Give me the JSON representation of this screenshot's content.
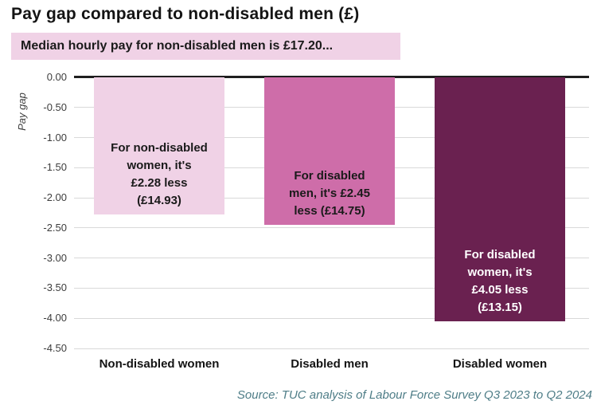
{
  "chart_data": {
    "type": "bar",
    "title": "Pay gap compared to non-disabled men (£)",
    "subtitle": "Median hourly pay for non-disabled men is £17.20...",
    "ylabel": "Pay gap",
    "xlabel": "",
    "ylim": [
      -4.5,
      0
    ],
    "ytick_step": 0.5,
    "ytick_labels": [
      "0.00",
      "-0.50",
      "-1.00",
      "-1.50",
      "-2.00",
      "-2.50",
      "-3.00",
      "-3.50",
      "-4.00",
      "-4.50"
    ],
    "grid": true,
    "legend": "none",
    "categories": [
      "Non-disabled women",
      "Disabled men",
      "Disabled women"
    ],
    "values": [
      -2.28,
      -2.45,
      -4.05
    ],
    "bars": [
      {
        "category": "Non-disabled women",
        "value": -2.28,
        "label_lines": [
          "For non-disabled",
          "women, it's",
          "£2.28 less",
          "(£14.93)"
        ],
        "color": "#F0D2E6",
        "label_color": "#1a1a1a"
      },
      {
        "category": "Disabled men",
        "value": -2.45,
        "label_lines": [
          "For disabled",
          "men, it's £2.45",
          "less (£14.75)"
        ],
        "color": "#CE6DA9",
        "label_color": "#1a1a1a"
      },
      {
        "category": "Disabled women",
        "value": -4.05,
        "label_lines": [
          "For disabled",
          "women, it's",
          "£4.05 less",
          "(£13.15)"
        ],
        "color": "#6A2150",
        "label_color": "#ffffff"
      }
    ],
    "source": "Source: TUC analysis of Labour Force Survey Q3 2023 to Q2 2024"
  },
  "colors": {
    "highlight_bg": "#F0D2E6",
    "zero_line": "#1f1f1f",
    "gridline": "#d9d9d9",
    "axis_text": "#3d3d3d",
    "source_text": "#4E7D87"
  }
}
